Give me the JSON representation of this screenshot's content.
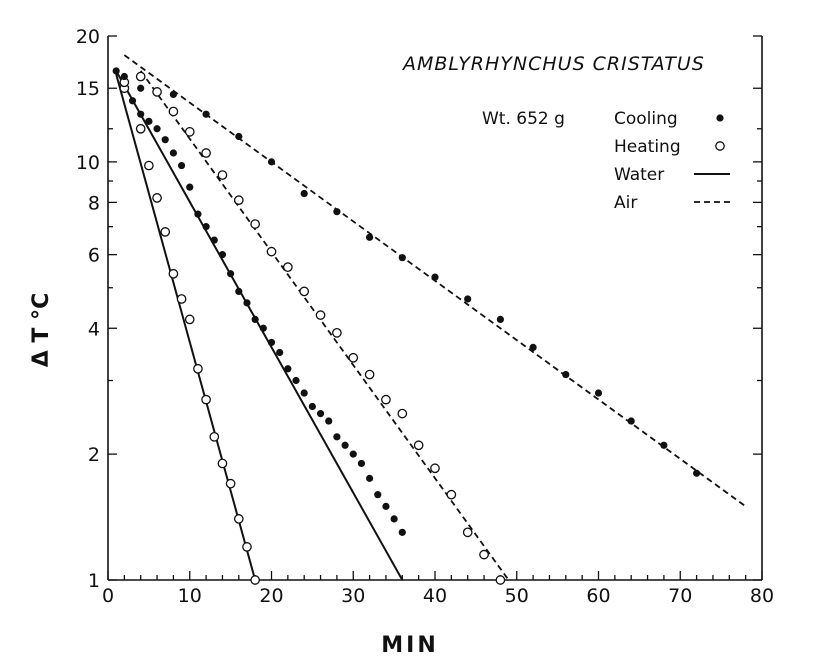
{
  "chart_data": {
    "type": "scatter",
    "title": "AMBLYRHYNCHUS CRISTATUS",
    "annotation": "Wt. 652 g",
    "xlabel": "MIN",
    "ylabel": "Δ T °C",
    "xlim": [
      0,
      80
    ],
    "ylim": [
      1,
      20
    ],
    "yscale": "log",
    "x_ticks": [
      0,
      10,
      20,
      30,
      40,
      50,
      60,
      70,
      80
    ],
    "y_ticks": [
      1,
      2,
      4,
      6,
      8,
      10,
      15,
      20
    ],
    "grid": false,
    "legend_position": "top-right",
    "legend": [
      {
        "label": "Cooling",
        "symbol": "filled-circle"
      },
      {
        "label": "Heating",
        "symbol": "open-circle"
      },
      {
        "label": "Water",
        "symbol": "solid-line"
      },
      {
        "label": "Air",
        "symbol": "dashed-line"
      }
    ],
    "series": [
      {
        "medium": "water",
        "mode": "heating",
        "points": [
          [
            2,
            15
          ],
          [
            4,
            12
          ],
          [
            5,
            9.8
          ],
          [
            6,
            8.2
          ],
          [
            7,
            6.8
          ],
          [
            8,
            5.4
          ],
          [
            9,
            4.7
          ],
          [
            10,
            4.2
          ],
          [
            11,
            3.2
          ],
          [
            12,
            2.7
          ],
          [
            13,
            2.2
          ],
          [
            14,
            1.9
          ],
          [
            15,
            1.7
          ],
          [
            16,
            1.4
          ],
          [
            17,
            1.2
          ],
          [
            18,
            1.0
          ]
        ],
        "fit": [
          [
            1,
            16.2
          ],
          [
            18,
            1.0
          ]
        ]
      },
      {
        "medium": "water",
        "mode": "cooling",
        "points": [
          [
            1,
            16.5
          ],
          [
            2,
            15.5
          ],
          [
            3,
            14
          ],
          [
            4,
            13
          ],
          [
            5,
            12.5
          ],
          [
            6,
            12
          ],
          [
            7,
            11.3
          ],
          [
            8,
            10.5
          ],
          [
            9,
            9.8
          ],
          [
            10,
            8.7
          ],
          [
            11,
            7.5
          ],
          [
            12,
            7
          ],
          [
            13,
            6.5
          ],
          [
            14,
            6
          ],
          [
            15,
            5.4
          ],
          [
            16,
            4.9
          ],
          [
            17,
            4.6
          ],
          [
            18,
            4.2
          ],
          [
            19,
            4
          ],
          [
            20,
            3.7
          ],
          [
            21,
            3.5
          ],
          [
            22,
            3.2
          ],
          [
            23,
            3
          ],
          [
            24,
            2.8
          ],
          [
            25,
            2.6
          ],
          [
            26,
            2.5
          ],
          [
            27,
            2.4
          ],
          [
            28,
            2.2
          ],
          [
            29,
            2.1
          ],
          [
            30,
            2
          ],
          [
            31,
            1.9
          ],
          [
            32,
            1.75
          ],
          [
            33,
            1.6
          ],
          [
            34,
            1.5
          ],
          [
            35,
            1.4
          ],
          [
            36,
            1.3
          ]
        ],
        "fit": [
          [
            1,
            16.5
          ],
          [
            36,
            1.0
          ]
        ]
      },
      {
        "medium": "air",
        "mode": "heating",
        "points": [
          [
            2,
            15.5
          ],
          [
            4,
            16
          ],
          [
            6,
            14.7
          ],
          [
            8,
            13.2
          ],
          [
            10,
            11.8
          ],
          [
            12,
            10.5
          ],
          [
            14,
            9.3
          ],
          [
            16,
            8.1
          ],
          [
            18,
            7.1
          ],
          [
            20,
            6.1
          ],
          [
            22,
            5.6
          ],
          [
            24,
            4.9
          ],
          [
            26,
            4.3
          ],
          [
            28,
            3.9
          ],
          [
            30,
            3.4
          ],
          [
            32,
            3.1
          ],
          [
            34,
            2.7
          ],
          [
            36,
            2.5
          ],
          [
            38,
            2.1
          ],
          [
            40,
            1.85
          ],
          [
            42,
            1.6
          ],
          [
            44,
            1.3
          ],
          [
            46,
            1.15
          ],
          [
            48,
            1.0
          ]
        ],
        "fit": [
          [
            4,
            16.5
          ],
          [
            49,
            1.0
          ]
        ]
      },
      {
        "medium": "air",
        "mode": "cooling",
        "points": [
          [
            2,
            16
          ],
          [
            4,
            15
          ],
          [
            8,
            14.5
          ],
          [
            12,
            13
          ],
          [
            16,
            11.5
          ],
          [
            20,
            10
          ],
          [
            24,
            8.4
          ],
          [
            28,
            7.6
          ],
          [
            32,
            6.6
          ],
          [
            36,
            5.9
          ],
          [
            40,
            5.3
          ],
          [
            44,
            4.7
          ],
          [
            48,
            4.2
          ],
          [
            52,
            3.6
          ],
          [
            56,
            3.1
          ],
          [
            60,
            2.8
          ],
          [
            64,
            2.4
          ],
          [
            68,
            2.1
          ],
          [
            72,
            1.8
          ]
        ],
        "fit": [
          [
            2,
            18
          ],
          [
            78,
            1.5
          ]
        ]
      }
    ]
  }
}
